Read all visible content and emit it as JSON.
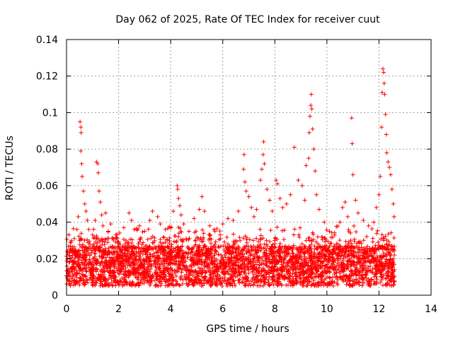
{
  "chart_data": {
    "type": "scatter",
    "title": "Day 062 of 2025, Rate Of TEC Index for receiver cuut",
    "xlabel": "GPS time / hours",
    "ylabel": "ROTI / TECUs",
    "xlim": [
      0,
      14
    ],
    "ylim": [
      0,
      0.14
    ],
    "xticks": [
      "0",
      "2",
      "4",
      "6",
      "8",
      "10",
      "12",
      "14"
    ],
    "yticks": [
      "0",
      "0.02",
      "0.04",
      "0.06",
      "0.08",
      "0.1",
      "0.12",
      "0.14"
    ],
    "grid": true,
    "legend": "none",
    "marker": "+",
    "color": "#ff0000",
    "data_extent_x": [
      0,
      12.6
    ],
    "series": [
      {
        "points": [
          [
            0.05,
            0.012
          ],
          [
            0.1,
            0.018
          ],
          [
            0.15,
            0.025
          ],
          [
            0.2,
            0.009
          ],
          [
            0.3,
            0.031
          ],
          [
            0.35,
            0.022
          ],
          [
            0.4,
            0.036
          ],
          [
            0.45,
            0.043
          ],
          [
            0.5,
            0.03
          ],
          [
            0.52,
            0.095
          ],
          [
            0.55,
            0.092
          ],
          [
            0.56,
            0.089
          ],
          [
            0.55,
            0.079
          ],
          [
            0.58,
            0.072
          ],
          [
            0.6,
            0.065
          ],
          [
            0.65,
            0.057
          ],
          [
            0.7,
            0.05
          ],
          [
            0.75,
            0.046
          ],
          [
            0.8,
            0.041
          ],
          [
            0.85,
            0.036
          ],
          [
            0.9,
            0.028
          ],
          [
            1.0,
            0.033
          ],
          [
            1.1,
            0.041
          ],
          [
            1.15,
            0.073
          ],
          [
            1.2,
            0.072
          ],
          [
            1.22,
            0.067
          ],
          [
            1.25,
            0.057
          ],
          [
            1.3,
            0.051
          ],
          [
            1.35,
            0.044
          ],
          [
            1.4,
            0.038
          ],
          [
            1.5,
            0.045
          ],
          [
            1.6,
            0.035
          ],
          [
            1.7,
            0.039
          ],
          [
            1.8,
            0.031
          ],
          [
            1.9,
            0.033
          ],
          [
            2.0,
            0.029
          ],
          [
            2.2,
            0.037
          ],
          [
            2.4,
            0.045
          ],
          [
            2.5,
            0.041
          ],
          [
            2.6,
            0.036
          ],
          [
            2.8,
            0.038
          ],
          [
            3.0,
            0.035
          ],
          [
            3.2,
            0.041
          ],
          [
            3.3,
            0.046
          ],
          [
            3.5,
            0.043
          ],
          [
            3.6,
            0.039
          ],
          [
            3.8,
            0.036
          ],
          [
            4.0,
            0.037
          ],
          [
            4.1,
            0.046
          ],
          [
            4.25,
            0.06
          ],
          [
            4.27,
            0.058
          ],
          [
            4.3,
            0.053
          ],
          [
            4.35,
            0.049
          ],
          [
            4.4,
            0.044
          ],
          [
            4.5,
            0.039
          ],
          [
            4.7,
            0.035
          ],
          [
            4.9,
            0.042
          ],
          [
            5.1,
            0.047
          ],
          [
            5.2,
            0.054
          ],
          [
            5.3,
            0.046
          ],
          [
            5.5,
            0.038
          ],
          [
            5.7,
            0.035
          ],
          [
            5.9,
            0.033
          ],
          [
            6.0,
            0.039
          ],
          [
            6.2,
            0.042
          ],
          [
            6.4,
            0.041
          ],
          [
            6.6,
            0.046
          ],
          [
            6.8,
            0.069
          ],
          [
            6.82,
            0.077
          ],
          [
            6.85,
            0.062
          ],
          [
            6.9,
            0.057
          ],
          [
            7.0,
            0.054
          ],
          [
            7.1,
            0.048
          ],
          [
            7.2,
            0.043
          ],
          [
            7.3,
            0.047
          ],
          [
            7.45,
            0.063
          ],
          [
            7.5,
            0.069
          ],
          [
            7.55,
            0.077
          ],
          [
            7.57,
            0.084
          ],
          [
            7.6,
            0.072
          ],
          [
            7.7,
            0.058
          ],
          [
            7.8,
            0.052
          ],
          [
            7.9,
            0.046
          ],
          [
            8.05,
            0.063
          ],
          [
            8.1,
            0.061
          ],
          [
            8.2,
            0.053
          ],
          [
            8.3,
            0.048
          ],
          [
            8.45,
            0.05
          ],
          [
            8.6,
            0.055
          ],
          [
            8.75,
            0.081
          ],
          [
            8.9,
            0.063
          ],
          [
            9.05,
            0.06
          ],
          [
            9.15,
            0.052
          ],
          [
            9.2,
            0.071
          ],
          [
            9.3,
            0.075
          ],
          [
            9.32,
            0.089
          ],
          [
            9.35,
            0.098
          ],
          [
            9.38,
            0.104
          ],
          [
            9.4,
            0.11
          ],
          [
            9.42,
            0.102
          ],
          [
            9.45,
            0.091
          ],
          [
            9.5,
            0.08
          ],
          [
            9.55,
            0.068
          ],
          [
            9.6,
            0.055
          ],
          [
            9.7,
            0.047
          ],
          [
            9.9,
            0.04
          ],
          [
            10.1,
            0.035
          ],
          [
            10.3,
            0.033
          ],
          [
            10.5,
            0.04
          ],
          [
            10.6,
            0.048
          ],
          [
            10.7,
            0.051
          ],
          [
            10.8,
            0.043
          ],
          [
            10.95,
            0.097
          ],
          [
            10.97,
            0.083
          ],
          [
            11.0,
            0.066
          ],
          [
            11.1,
            0.052
          ],
          [
            11.2,
            0.045
          ],
          [
            11.4,
            0.041
          ],
          [
            11.6,
            0.038
          ],
          [
            11.8,
            0.04
          ],
          [
            11.9,
            0.048
          ],
          [
            12.0,
            0.055
          ],
          [
            12.05,
            0.065
          ],
          [
            12.1,
            0.092
          ],
          [
            12.12,
            0.111
          ],
          [
            12.15,
            0.124
          ],
          [
            12.18,
            0.122
          ],
          [
            12.2,
            0.116
          ],
          [
            12.22,
            0.11
          ],
          [
            12.25,
            0.099
          ],
          [
            12.28,
            0.088
          ],
          [
            12.3,
            0.078
          ],
          [
            12.35,
            0.073
          ],
          [
            12.4,
            0.07
          ],
          [
            12.45,
            0.066
          ],
          [
            12.5,
            0.058
          ],
          [
            12.55,
            0.05
          ],
          [
            12.58,
            0.043
          ]
        ]
      }
    ]
  }
}
